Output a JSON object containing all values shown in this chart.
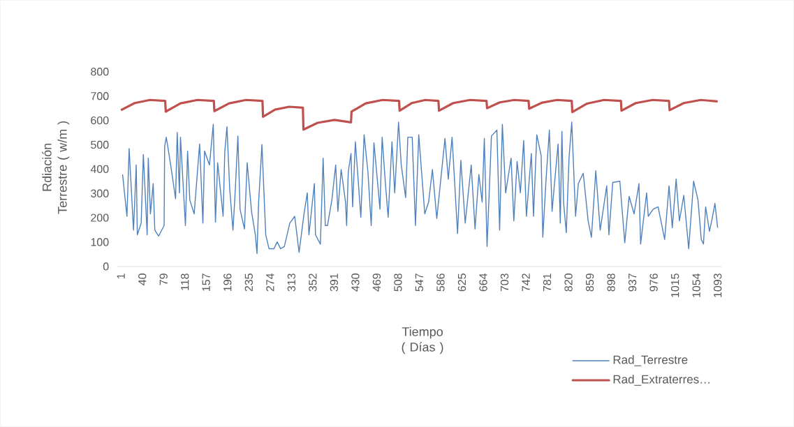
{
  "chart_data": {
    "type": "line",
    "xlabel": "Tiempo ( Días )",
    "ylabel": "Rdiación Terrestre ( w/m )",
    "xlim": [
      -6,
      1100
    ],
    "ylim": [
      0,
      800
    ],
    "xticks": [
      1,
      40,
      79,
      118,
      157,
      196,
      235,
      274,
      313,
      352,
      391,
      430,
      469,
      508,
      547,
      586,
      625,
      664,
      703,
      742,
      781,
      820,
      859,
      898,
      937,
      976,
      1015,
      1054,
      1093
    ],
    "yticks": [
      0,
      100,
      200,
      300,
      400,
      500,
      600,
      700,
      800
    ],
    "legend": "bottom right",
    "marker": "none",
    "line_style": "solid",
    "series": [
      {
        "name": "Rad_Terrestre",
        "color": "#4f81bd",
        "x": [
          4,
          12,
          16,
          24,
          29,
          31,
          38,
          42,
          49,
          51,
          55,
          60,
          63,
          70,
          80,
          81,
          84,
          92,
          101,
          104,
          108,
          110,
          119,
          123,
          127,
          135,
          145,
          151,
          154,
          163,
          170,
          174,
          178,
          188,
          191,
          195,
          200,
          206,
          210,
          215,
          219,
          227,
          232,
          240,
          247,
          250,
          253,
          259,
          266,
          272,
          281,
          287,
          293,
          300,
          310,
          319,
          327,
          336,
          342,
          345,
          355,
          357,
          366,
          371,
          375,
          379,
          387,
          394,
          398,
          404,
          412,
          414,
          417,
          422,
          425,
          430,
          435,
          440,
          446,
          453,
          459,
          464,
          472,
          475,
          479,
          485,
          490,
          497,
          502,
          509,
          514,
          522,
          526,
          534,
          540,
          546,
          557,
          564,
          571,
          579,
          594,
          600,
          607,
          617,
          623,
          631,
          642,
          649,
          656,
          662,
          666,
          671,
          679,
          689,
          694,
          699,
          705,
          715,
          720,
          726,
          732,
          738,
          743,
          752,
          756,
          762,
          770,
          773,
          779,
          785,
          790,
          794,
          801,
          805,
          808,
          811,
          816,
          821,
          826,
          833,
          838,
          847,
          856,
          862,
          870,
          878,
          890,
          894,
          901,
          914,
          923,
          931,
          940,
          949,
          952,
          963,
          966,
          975,
          984,
          996,
          1004,
          1010,
          1017,
          1023,
          1031,
          1040,
          1049,
          1057,
          1063,
          1067,
          1071,
          1078,
          1083,
          1088,
          1093
        ],
        "values": [
          378,
          206,
          484,
          149,
          417,
          130,
          178,
          460,
          130,
          445,
          216,
          340,
          149,
          125,
          168,
          493,
          531,
          417,
          278,
          550,
          302,
          531,
          168,
          474,
          273,
          216,
          503,
          178,
          474,
          417,
          584,
          182,
          426,
          206,
          469,
          574,
          321,
          149,
          302,
          536,
          235,
          154,
          426,
          226,
          130,
          53,
          264,
          501,
          130,
          73,
          73,
          101,
          73,
          82,
          178,
          206,
          58,
          216,
          302,
          130,
          340,
          130,
          92,
          445,
          168,
          168,
          273,
          417,
          226,
          398,
          264,
          168,
          388,
          464,
          245,
          512,
          359,
          202,
          541,
          388,
          168,
          508,
          312,
          235,
          531,
          340,
          202,
          512,
          302,
          593,
          417,
          283,
          531,
          531,
          168,
          541,
          216,
          264,
          398,
          197,
          526,
          359,
          531,
          135,
          436,
          178,
          417,
          154,
          378,
          264,
          526,
          82,
          536,
          560,
          149,
          584,
          302,
          445,
          187,
          431,
          302,
          517,
          206,
          464,
          206,
          541,
          455,
          120,
          359,
          560,
          226,
          331,
          503,
          178,
          555,
          264,
          139,
          445,
          593,
          206,
          340,
          383,
          187,
          120,
          393,
          149,
          331,
          130,
          345,
          350,
          97,
          288,
          216,
          340,
          92,
          302,
          206,
          235,
          245,
          111,
          331,
          159,
          359,
          187,
          292,
          73,
          350,
          273,
          111,
          92,
          245,
          144,
          197,
          259,
          159
        ]
      },
      {
        "name": "Rad_Extraterres…",
        "color": "#c0504d",
        "x": [
          1,
          26,
          54,
          82,
          83,
          110,
          141,
          171,
          172,
          199,
          230,
          260,
          261,
          283,
          309,
          334,
          335,
          361,
          392,
          422,
          423,
          449,
          480,
          510,
          511,
          533,
          558,
          582,
          583,
          609,
          640,
          670,
          671,
          694,
          721,
          747,
          748,
          772,
          799,
          826,
          827,
          854,
          885,
          916,
          917,
          943,
          974,
          1004,
          1005,
          1031,
          1062,
          1093
        ],
        "values": [
          642,
          671,
          684,
          680,
          636,
          670,
          684,
          680,
          638,
          670,
          684,
          680,
          615,
          644,
          656,
          652,
          562,
          590,
          602,
          592,
          636,
          670,
          684,
          680,
          640,
          671,
          684,
          680,
          640,
          671,
          684,
          680,
          650,
          674,
          684,
          680,
          648,
          673,
          684,
          680,
          634,
          669,
          684,
          680,
          640,
          671,
          684,
          680,
          642,
          671,
          684,
          678
        ]
      }
    ]
  }
}
